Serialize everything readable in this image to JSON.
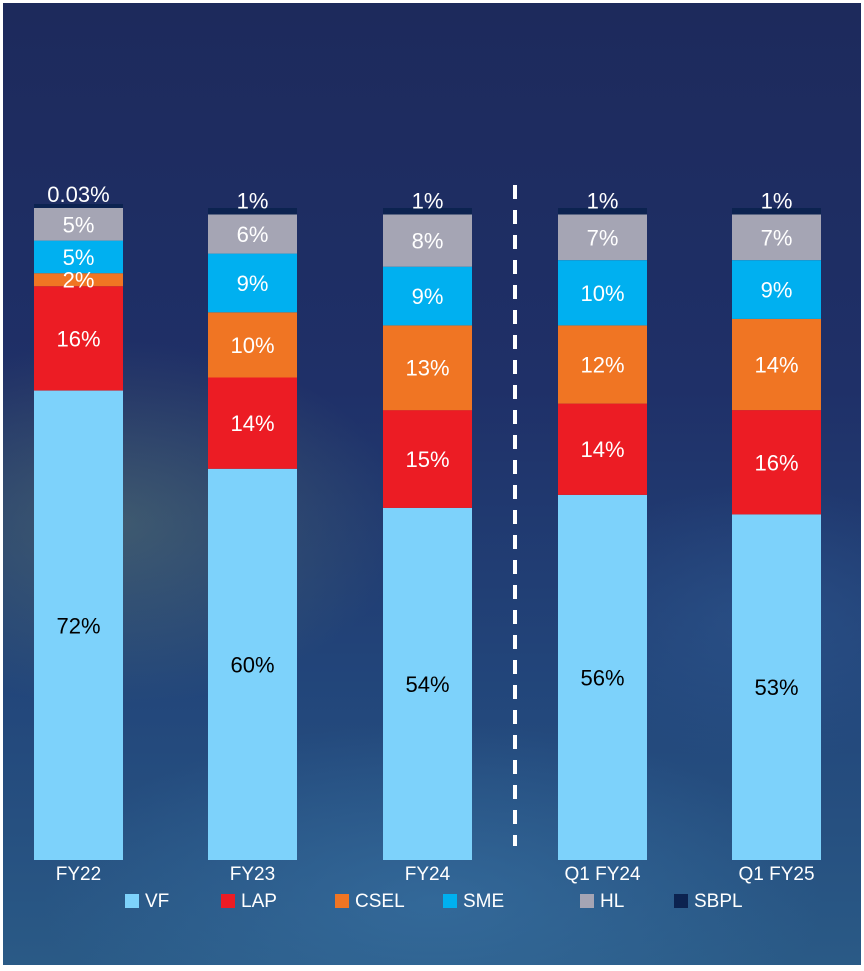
{
  "chart_data": {
    "type": "bar",
    "stacked": true,
    "normalized_percent": true,
    "categories": [
      "FY22",
      "FY23",
      "FY24",
      "Q1 FY24",
      "Q1 FY25"
    ],
    "series": [
      {
        "name": "VF",
        "color": "#7dd2fb",
        "values": [
          72,
          60,
          54,
          56,
          53
        ],
        "labels": [
          "72%",
          "60%",
          "54%",
          "56%",
          "53%"
        ]
      },
      {
        "name": "LAP",
        "color": "#ec1c24",
        "values": [
          16,
          14,
          15,
          14,
          16
        ],
        "labels": [
          "16%",
          "14%",
          "15%",
          "14%",
          "16%"
        ]
      },
      {
        "name": "CSEL",
        "color": "#f07523",
        "values": [
          2,
          10,
          13,
          12,
          14
        ],
        "labels": [
          "2%",
          "10%",
          "13%",
          "12%",
          "14%"
        ]
      },
      {
        "name": "SME",
        "color": "#00b0f0",
        "values": [
          5,
          9,
          9,
          10,
          9
        ],
        "labels": [
          "5%",
          "9%",
          "9%",
          "10%",
          "9%"
        ]
      },
      {
        "name": "HL",
        "color": "#a5a5b4",
        "values": [
          5,
          6,
          8,
          7,
          7
        ],
        "labels": [
          "5%",
          "6%",
          "8%",
          "7%",
          "7%"
        ]
      },
      {
        "name": "SBPL",
        "color": "#0c2350",
        "values": [
          0.03,
          1,
          1,
          1,
          1
        ],
        "labels": [
          "0.03%",
          "1%",
          "1%",
          "1%",
          "1%"
        ]
      }
    ],
    "ylim": [
      0,
      100
    ],
    "divider_after_category": "FY24",
    "legend_position": "bottom",
    "title": "",
    "xlabel": "",
    "ylabel": ""
  }
}
